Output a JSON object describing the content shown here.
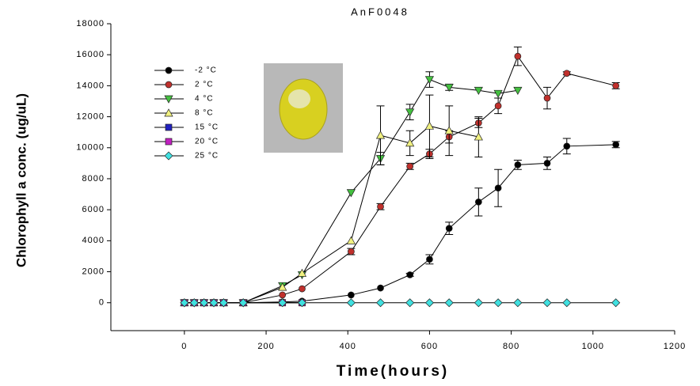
{
  "chart_data": {
    "type": "line",
    "title": "AnF0048",
    "x_label": "Time(hours)",
    "y_label": "Chlorophyll a conc. (ug/uL)",
    "xlim": [
      -180,
      1200
    ],
    "xticks": [
      0,
      200,
      400,
      600,
      800,
      1000,
      1200
    ],
    "ylim": [
      -1800,
      18000
    ],
    "yticks": [
      0,
      2000,
      4000,
      6000,
      8000,
      10000,
      12000,
      14000,
      16000,
      18000
    ],
    "series": [
      {
        "name": "-2 °C",
        "color": "#000000",
        "marker": "circle",
        "x": [
          0,
          24,
          48,
          72,
          96,
          144,
          240,
          288,
          408,
          480,
          552,
          600,
          648,
          720,
          768,
          816,
          888,
          936,
          1056
        ],
        "values": [
          0,
          0,
          0,
          0,
          0,
          0,
          50,
          100,
          500,
          950,
          1800,
          2800,
          4800,
          6500,
          7400,
          8900,
          9000,
          10100,
          10200
        ],
        "errors": [
          null,
          null,
          null,
          null,
          null,
          null,
          null,
          null,
          null,
          null,
          100,
          300,
          400,
          900,
          1200,
          300,
          400,
          500,
          200
        ]
      },
      {
        "name": "2 °C",
        "color": "#c0302c",
        "marker": "circle",
        "x": [
          0,
          24,
          48,
          72,
          96,
          144,
          240,
          288,
          408,
          480,
          552,
          600,
          648,
          720,
          768,
          816,
          888,
          936,
          1056
        ],
        "values": [
          0,
          0,
          0,
          0,
          0,
          0,
          500,
          900,
          3300,
          6200,
          8800,
          9600,
          10700,
          11600,
          12700,
          15900,
          13200,
          14800,
          14000
        ],
        "errors": [
          null,
          null,
          null,
          null,
          null,
          null,
          null,
          null,
          200,
          200,
          200,
          300,
          400,
          300,
          500,
          600,
          700,
          100,
          200
        ]
      },
      {
        "name": "4 °C",
        "color": "#44c040",
        "marker": "down",
        "x": [
          0,
          24,
          48,
          72,
          96,
          144,
          240,
          288,
          408,
          480,
          552,
          600,
          648,
          720,
          768,
          816
        ],
        "values": [
          0,
          0,
          0,
          0,
          0,
          0,
          1100,
          1800,
          7100,
          9300,
          12300,
          14400,
          13900,
          13700,
          13500,
          13700
        ],
        "errors": [
          null,
          null,
          null,
          null,
          null,
          null,
          null,
          null,
          null,
          400,
          500,
          500,
          200,
          null,
          null,
          null
        ]
      },
      {
        "name": "8 °C",
        "color": "#f0f080",
        "marker": "up",
        "x": [
          0,
          24,
          48,
          72,
          96,
          144,
          240,
          288,
          408,
          480,
          552,
          600,
          648,
          720
        ],
        "values": [
          0,
          0,
          0,
          0,
          0,
          0,
          1000,
          1900,
          4000,
          10800,
          10300,
          11400,
          11100,
          10700
        ],
        "errors": [
          null,
          null,
          null,
          null,
          null,
          null,
          null,
          null,
          null,
          1900,
          800,
          2000,
          1600,
          1300
        ]
      },
      {
        "name": "15 °C",
        "color": "#2020c0",
        "marker": "square",
        "x": [
          0,
          24,
          48,
          72,
          96,
          144,
          240,
          288
        ],
        "values": [
          0,
          0,
          0,
          0,
          0,
          0,
          0,
          0
        ]
      },
      {
        "name": "20 °C",
        "color": "#c020c0",
        "marker": "square",
        "x": [
          0,
          24,
          48,
          72,
          96,
          144,
          240,
          288
        ],
        "values": [
          0,
          0,
          0,
          0,
          0,
          0,
          0,
          0
        ]
      },
      {
        "name": "25 °C",
        "color": "#40e0e0",
        "marker": "diamond",
        "x": [
          0,
          24,
          48,
          72,
          96,
          144,
          240,
          288,
          408,
          480,
          552,
          600,
          648,
          720,
          768,
          816,
          888,
          936,
          1056
        ],
        "values": [
          0,
          0,
          0,
          0,
          0,
          0,
          0,
          0,
          0,
          0,
          0,
          0,
          0,
          0,
          0,
          0,
          0,
          0,
          0
        ]
      }
    ]
  }
}
